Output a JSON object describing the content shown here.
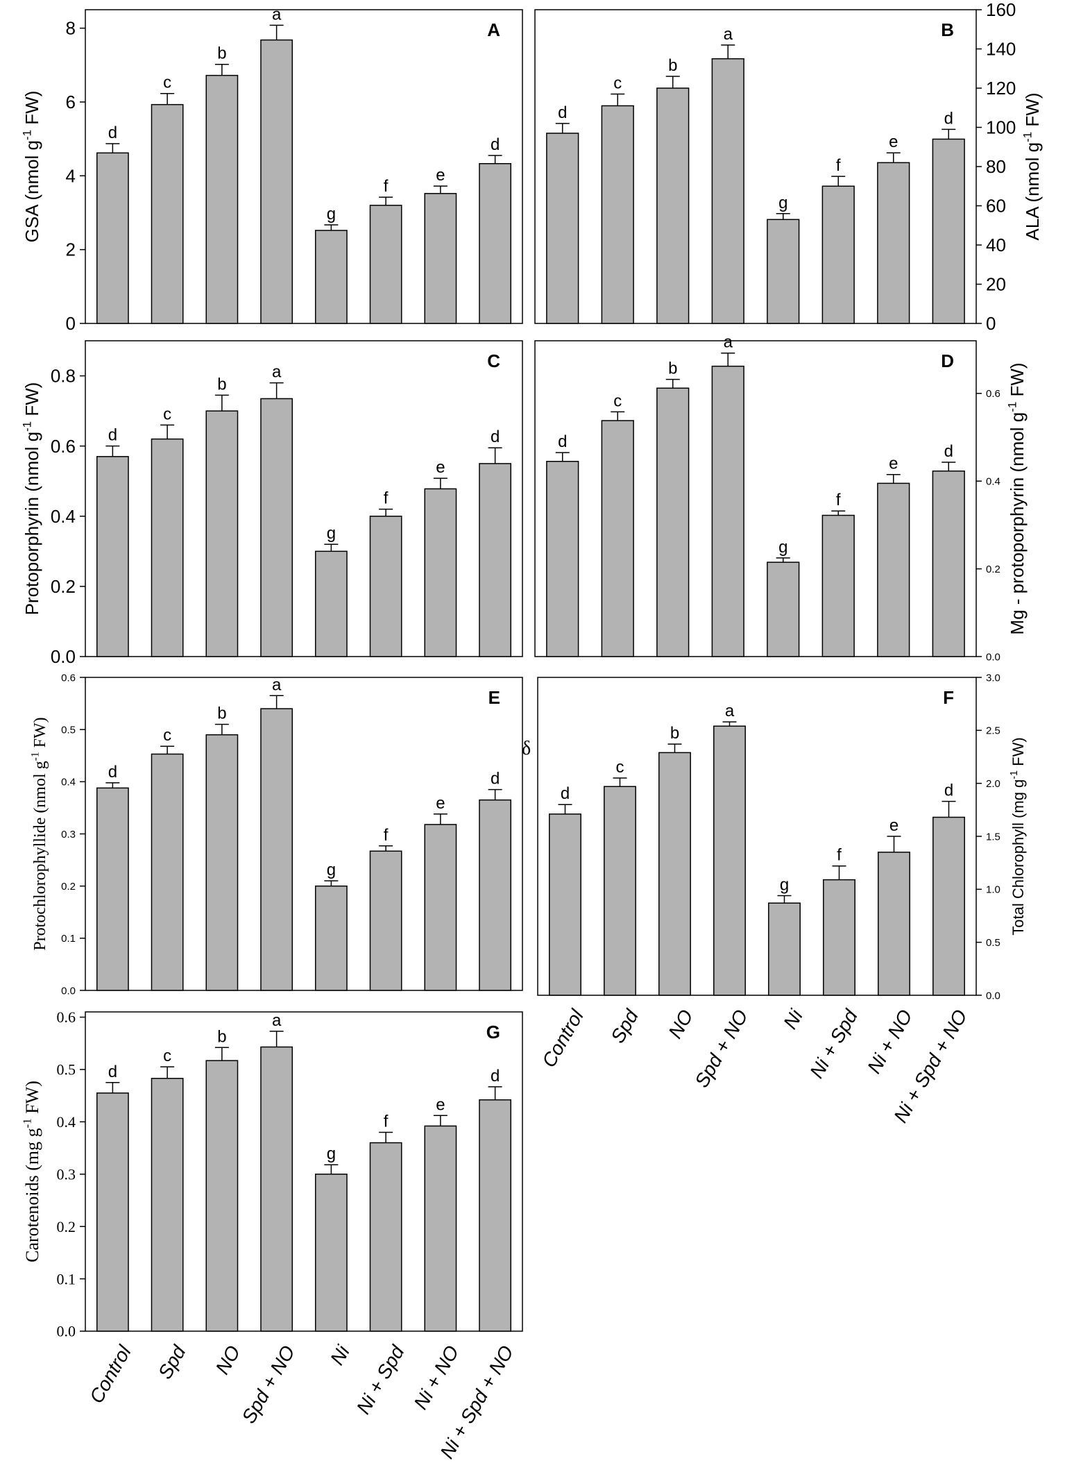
{
  "categories": [
    "Control",
    "Spd",
    "NO",
    "Spd + NO",
    "Ni",
    "Ni + Spd",
    "Ni + NO",
    "Ni + Spd + NO"
  ],
  "stray_symbol": "δ",
  "colors": {
    "bar": "#b3b3b3",
    "axis": "#000000"
  },
  "chart_data": [
    {
      "panel": "A",
      "type": "bar",
      "ylabel": "GSA (nmol g",
      "ylabel_sup": "-1",
      "ylabel_tail": " FW)",
      "ylim": [
        0,
        8.5
      ],
      "yticks": [
        0,
        2,
        4,
        6,
        8
      ],
      "tick_labels": [
        "0",
        "2",
        "4",
        "6",
        "8"
      ],
      "values": [
        4.62,
        5.93,
        6.72,
        7.68,
        2.52,
        3.2,
        3.52,
        4.33
      ],
      "errors": [
        0.25,
        0.3,
        0.3,
        0.4,
        0.15,
        0.22,
        0.2,
        0.22
      ],
      "letters": [
        "d",
        "c",
        "b",
        "a",
        "g",
        "f",
        "e",
        "d"
      ]
    },
    {
      "panel": "B",
      "type": "bar",
      "ylabel": "ALA (nmol g",
      "ylabel_sup": "-1",
      "ylabel_tail": " FW)",
      "ylim": [
        0,
        160
      ],
      "yticks": [
        0,
        20,
        40,
        60,
        80,
        100,
        120,
        140,
        160
      ],
      "tick_labels": [
        "0",
        "20",
        "40",
        "60",
        "80",
        "100",
        "120",
        "140",
        "160"
      ],
      "values": [
        97,
        111,
        120,
        135,
        53,
        70,
        82,
        94
      ],
      "errors": [
        5,
        6,
        6,
        7,
        3,
        5,
        5,
        5
      ],
      "letters": [
        "d",
        "c",
        "b",
        "a",
        "g",
        "f",
        "e",
        "d"
      ]
    },
    {
      "panel": "C",
      "type": "bar",
      "ylabel": "Protoporphyrin (nmol g",
      "ylabel_sup": "-1",
      "ylabel_tail": " FW)",
      "ylim": [
        0,
        0.9
      ],
      "yticks": [
        0,
        0.2,
        0.4,
        0.6,
        0.8
      ],
      "tick_labels": [
        "0.0",
        "0.2",
        "0.4",
        "0.6",
        "0.8"
      ],
      "values": [
        0.57,
        0.62,
        0.7,
        0.735,
        0.3,
        0.4,
        0.478,
        0.55
      ],
      "errors": [
        0.03,
        0.04,
        0.045,
        0.045,
        0.02,
        0.02,
        0.03,
        0.045
      ],
      "letters": [
        "d",
        "c",
        "b",
        "a",
        "g",
        "f",
        "e",
        "d"
      ]
    },
    {
      "panel": "D",
      "type": "bar",
      "ylabel": "Mg - protoporphyrin (nmol g",
      "ylabel_sup": "-1",
      "ylabel_tail": " FW)",
      "ylim": [
        0,
        0.72
      ],
      "yticks": [
        0,
        0.2,
        0.4,
        0.6
      ],
      "tick_labels": [
        "0.0",
        "0.2",
        "0.4",
        "0.6"
      ],
      "values": [
        0.445,
        0.538,
        0.612,
        0.662,
        0.215,
        0.322,
        0.395,
        0.423
      ],
      "errors": [
        0.02,
        0.02,
        0.02,
        0.03,
        0.01,
        0.01,
        0.02,
        0.02
      ],
      "letters": [
        "d",
        "c",
        "b",
        "a",
        "g",
        "f",
        "e",
        "d"
      ]
    },
    {
      "panel": "E",
      "type": "bar",
      "ylabel": "Protochlorophyllide (nmol g",
      "ylabel_sup": "-1",
      "ylabel_tail": " FW)",
      "ylim": [
        0,
        0.6
      ],
      "yticks": [
        0,
        0.1,
        0.2,
        0.3,
        0.4,
        0.5,
        0.6
      ],
      "tick_labels": [
        "0.0",
        "0.1",
        "0.2",
        "0.3",
        "0.4",
        "0.5",
        "0.6"
      ],
      "values": [
        0.388,
        0.453,
        0.49,
        0.54,
        0.2,
        0.267,
        0.318,
        0.365
      ],
      "errors": [
        0.01,
        0.015,
        0.02,
        0.025,
        0.01,
        0.01,
        0.02,
        0.02
      ],
      "letters": [
        "d",
        "c",
        "b",
        "a",
        "g",
        "f",
        "e",
        "d"
      ]
    },
    {
      "panel": "F",
      "type": "bar",
      "ylabel": "Total Chlorophyll (mg g",
      "ylabel_sup": "-1",
      "ylabel_tail": " FW)",
      "ylim": [
        0,
        3.0
      ],
      "yticks": [
        0,
        0.5,
        1.0,
        1.5,
        2.0,
        2.5,
        3.0
      ],
      "tick_labels": [
        "0.0",
        "0.5",
        "1.0",
        "1.5",
        "2.0",
        "2.5",
        "3.0"
      ],
      "values": [
        1.71,
        1.97,
        2.29,
        2.54,
        0.87,
        1.09,
        1.35,
        1.68
      ],
      "errors": [
        0.09,
        0.08,
        0.08,
        0.04,
        0.07,
        0.13,
        0.15,
        0.15
      ],
      "letters": [
        "d",
        "c",
        "b",
        "a",
        "g",
        "f",
        "e",
        "d"
      ]
    },
    {
      "panel": "G",
      "type": "bar",
      "ylabel": "Carotenoids (mg g",
      "ylabel_sup": "-1",
      "ylabel_tail": " FW)",
      "ylim": [
        0,
        0.61
      ],
      "yticks": [
        0,
        0.1,
        0.2,
        0.3,
        0.4,
        0.5,
        0.6
      ],
      "tick_labels": [
        "0.0",
        "0.1",
        "0.2",
        "0.3",
        "0.4",
        "0.5",
        "0.6"
      ],
      "values": [
        0.455,
        0.483,
        0.517,
        0.543,
        0.3,
        0.36,
        0.392,
        0.442
      ],
      "errors": [
        0.02,
        0.022,
        0.025,
        0.03,
        0.018,
        0.02,
        0.02,
        0.025
      ],
      "letters": [
        "d",
        "c",
        "b",
        "a",
        "g",
        "f",
        "e",
        "d"
      ]
    }
  ]
}
